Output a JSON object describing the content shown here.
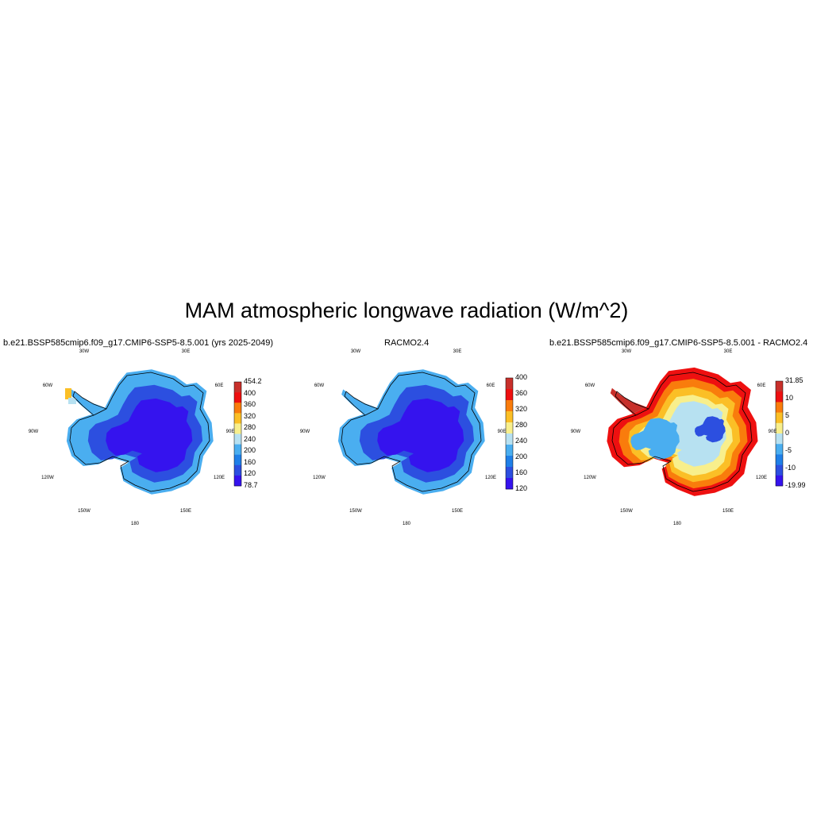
{
  "title": "MAM atmospheric longwave radiation (W/m^2)",
  "panels": [
    {
      "title": "b.e21.BSSP585cmip6.f09_g17.CMIP6-SSP5-8.5.001 (yrs 2025-2049)",
      "lon_labels": [
        "30W",
        "30E",
        "60W",
        "60E",
        "90W",
        "90E",
        "120W",
        "120E",
        "150W",
        "150E",
        "180"
      ],
      "colorbar": {
        "labels": [
          "454.2",
          "400",
          "360",
          "320",
          "280",
          "240",
          "200",
          "160",
          "120",
          "78.7"
        ],
        "colors": [
          "#c8302b",
          "#ee1010",
          "#f97c0c",
          "#fbbf26",
          "#f8ef8c",
          "#b7e1f1",
          "#4aaef0",
          "#1f7fe8",
          "#2c4fe0",
          "#3513ee"
        ]
      }
    },
    {
      "title": "RACMO2.4",
      "lon_labels": [
        "30W",
        "30E",
        "60W",
        "60E",
        "90W",
        "90E",
        "120W",
        "120E",
        "150W",
        "150E",
        "180"
      ],
      "colorbar": {
        "labels": [
          "400",
          "360",
          "320",
          "280",
          "240",
          "200",
          "160",
          "120"
        ],
        "colors": [
          "#c8302b",
          "#ee1010",
          "#f97c0c",
          "#fbbf26",
          "#f8ef8c",
          "#b7e1f1",
          "#4aaef0",
          "#1f7fe8",
          "#2c4fe0",
          "#3513ee"
        ]
      }
    },
    {
      "title": "b.e21.BSSP585cmip6.f09_g17.CMIP6-SSP5-8.5.001 - RACMO2.4",
      "lon_labels": [
        "30W",
        "30E",
        "60W",
        "60E",
        "90W",
        "90E",
        "120W",
        "120E",
        "150W",
        "150E",
        "180"
      ],
      "colorbar": {
        "labels": [
          "31.85",
          "10",
          "5",
          "0",
          "-5",
          "-10",
          "-19.99"
        ],
        "colors": [
          "#c8302b",
          "#ee1010",
          "#f97c0c",
          "#fbbf26",
          "#f8ef8c",
          "#b7e1f1",
          "#4aaef0",
          "#1f7fe8",
          "#2c4fe0",
          "#3513ee"
        ]
      }
    }
  ]
}
